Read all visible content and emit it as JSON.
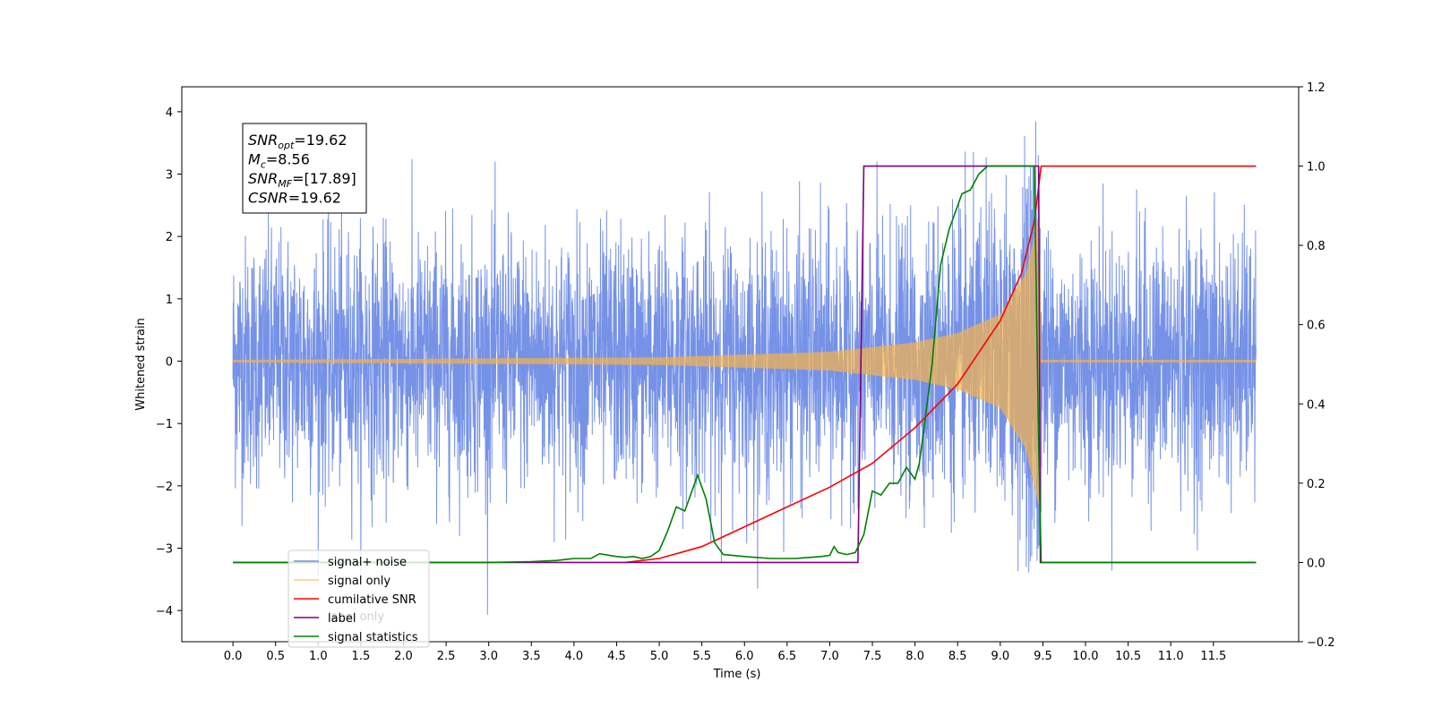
{
  "chart_data": {
    "type": "line",
    "xlabel": "Time (s)",
    "ylabel": "Whitened strain",
    "xlim": [
      -0.6,
      12.5
    ],
    "ylim": [
      -4.5,
      4.4
    ],
    "y2lim": [
      -0.2,
      1.2
    ],
    "x_ticks": [
      "0.0",
      "0.5",
      "1.0",
      "1.5",
      "2.0",
      "2.5",
      "3.0",
      "3.5",
      "4.0",
      "4.5",
      "5.0",
      "5.5",
      "6.0",
      "6.5",
      "7.0",
      "7.5",
      "8.0",
      "8.5",
      "9.0",
      "9.5",
      "10.0",
      "10.5",
      "11.0",
      "11.5"
    ],
    "x_tick_values": [
      0.0,
      0.5,
      1.0,
      1.5,
      2.0,
      2.5,
      3.0,
      3.5,
      4.0,
      4.5,
      5.0,
      5.5,
      6.0,
      6.5,
      7.0,
      7.5,
      8.0,
      8.5,
      9.0,
      9.5,
      10.0,
      10.5,
      11.0,
      11.5
    ],
    "y_ticks": [
      4,
      3,
      2,
      1,
      0,
      -1,
      -2,
      -3,
      -4
    ],
    "y2_ticks": [
      "1.2",
      "1.0",
      "0.8",
      "0.6",
      "0.4",
      "0.2",
      "0.0",
      "−0.2"
    ],
    "y2_tick_values": [
      1.2,
      1.0,
      0.8,
      0.6,
      0.4,
      0.2,
      0.0,
      -0.2
    ],
    "series": [
      {
        "name": "signal+ noise",
        "color": "#6f8ce6",
        "axis": "left",
        "x_range": [
          0.0,
          12.0
        ],
        "approx_amplitude_std": 1.0,
        "peak": 4.0,
        "min": -4.1
      },
      {
        "name": "signal only",
        "color": "#f5b34a",
        "axis": "left",
        "x_range": [
          0.0,
          12.0
        ],
        "envelope_at": [
          [
            0,
            0.02
          ],
          [
            5,
            0.06
          ],
          [
            7,
            0.15
          ],
          [
            8,
            0.3
          ],
          [
            8.5,
            0.45
          ],
          [
            9,
            0.75
          ],
          [
            9.3,
            1.4
          ],
          [
            9.45,
            2.3
          ],
          [
            9.5,
            0.0
          ]
        ]
      },
      {
        "name": "cumilative SNR",
        "color": "#ff0000",
        "axis": "right",
        "points": [
          [
            4.6,
            0.0
          ],
          [
            5.0,
            0.01
          ],
          [
            5.5,
            0.04
          ],
          [
            6.0,
            0.09
          ],
          [
            6.5,
            0.14
          ],
          [
            7.0,
            0.19
          ],
          [
            7.5,
            0.25
          ],
          [
            8.0,
            0.34
          ],
          [
            8.5,
            0.45
          ],
          [
            9.0,
            0.61
          ],
          [
            9.25,
            0.73
          ],
          [
            9.4,
            0.86
          ],
          [
            9.48,
            1.0
          ],
          [
            12.0,
            1.0
          ]
        ]
      },
      {
        "name": "label",
        "color": "#800080",
        "axis": "right",
        "points": [
          [
            0.0,
            0.0
          ],
          [
            7.33,
            0.0
          ],
          [
            7.4,
            1.0
          ],
          [
            9.45,
            1.0
          ],
          [
            9.47,
            0.0
          ],
          [
            12.0,
            0.0
          ]
        ]
      },
      {
        "name": "signal statistics",
        "color": "#008000",
        "axis": "right",
        "points": [
          [
            0.0,
            0.0
          ],
          [
            3.0,
            0.0
          ],
          [
            3.5,
            0.002
          ],
          [
            3.8,
            0.005
          ],
          [
            4.0,
            0.01
          ],
          [
            4.2,
            0.01
          ],
          [
            4.3,
            0.022
          ],
          [
            4.5,
            0.015
          ],
          [
            4.6,
            0.013
          ],
          [
            4.7,
            0.015
          ],
          [
            4.8,
            0.01
          ],
          [
            4.9,
            0.015
          ],
          [
            5.0,
            0.03
          ],
          [
            5.1,
            0.08
          ],
          [
            5.2,
            0.14
          ],
          [
            5.3,
            0.13
          ],
          [
            5.35,
            0.16
          ],
          [
            5.45,
            0.22
          ],
          [
            5.55,
            0.16
          ],
          [
            5.65,
            0.05
          ],
          [
            5.75,
            0.02
          ],
          [
            6.0,
            0.015
          ],
          [
            6.3,
            0.01
          ],
          [
            6.6,
            0.01
          ],
          [
            6.9,
            0.015
          ],
          [
            7.0,
            0.018
          ],
          [
            7.05,
            0.04
          ],
          [
            7.1,
            0.025
          ],
          [
            7.2,
            0.02
          ],
          [
            7.3,
            0.025
          ],
          [
            7.4,
            0.07
          ],
          [
            7.5,
            0.18
          ],
          [
            7.6,
            0.17
          ],
          [
            7.7,
            0.2
          ],
          [
            7.8,
            0.2
          ],
          [
            7.9,
            0.24
          ],
          [
            8.0,
            0.21
          ],
          [
            8.05,
            0.25
          ],
          [
            8.1,
            0.33
          ],
          [
            8.2,
            0.5
          ],
          [
            8.3,
            0.75
          ],
          [
            8.4,
            0.84
          ],
          [
            8.55,
            0.93
          ],
          [
            8.65,
            0.94
          ],
          [
            8.75,
            0.98
          ],
          [
            8.85,
            1.0
          ],
          [
            9.0,
            1.0
          ],
          [
            9.4,
            1.0
          ],
          [
            9.45,
            0.3
          ],
          [
            9.48,
            0.0
          ],
          [
            12.0,
            0.0
          ]
        ]
      }
    ],
    "legend": {
      "location": "lower-left",
      "entries": [
        "signal+ noise",
        "signal only",
        "cumilative SNR",
        "label",
        "signal statistics"
      ],
      "occluded_text": "label only"
    },
    "annotations": [
      {
        "base": "SNR",
        "sub": "opt",
        "value": "=19.62"
      },
      {
        "base": "M",
        "sub": "c",
        "value": "=8.56"
      },
      {
        "base": "SNR",
        "sub": "MF",
        "value": "=[17.89]"
      },
      {
        "base": "CSNR",
        "sub": "",
        "value": "=19.62"
      }
    ]
  }
}
